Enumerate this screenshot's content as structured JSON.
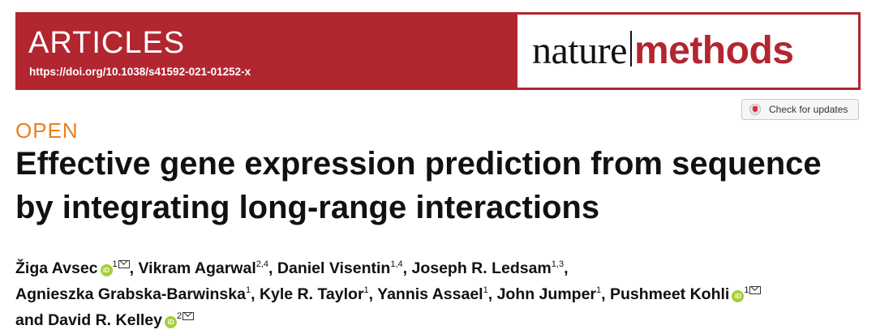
{
  "banner": {
    "section": "ARTICLES",
    "doi": "https://doi.org/10.1038/s41592-021-01252-x",
    "journal_part1": "nature",
    "journal_part2": "methods",
    "color": "#b22630"
  },
  "check_updates": {
    "label": "Check for updates",
    "icon": "crossmark-icon"
  },
  "access": "OPEN",
  "title": "Effective gene expression prediction from sequence by integrating long-range interactions",
  "authors": [
    {
      "name": "Žiga Avsec",
      "orcid": true,
      "aff": "1",
      "email": true,
      "sep": ", "
    },
    {
      "name": "Vikram Agarwal",
      "orcid": false,
      "aff": "2,4",
      "email": false,
      "sep": ", "
    },
    {
      "name": "Daniel Visentin",
      "orcid": false,
      "aff": "1,4",
      "email": false,
      "sep": ", "
    },
    {
      "name": "Joseph R. Ledsam",
      "orcid": false,
      "aff": "1,3",
      "email": false,
      "sep": ","
    },
    {
      "name": "Agnieszka Grabska-Barwinska",
      "orcid": false,
      "aff": "1",
      "email": false,
      "sep": ", "
    },
    {
      "name": "Kyle R. Taylor",
      "orcid": false,
      "aff": "1",
      "email": false,
      "sep": ", "
    },
    {
      "name": "Yannis Assael",
      "orcid": false,
      "aff": "1",
      "email": false,
      "sep": ", "
    },
    {
      "name": "John Jumper",
      "orcid": false,
      "aff": "1",
      "email": false,
      "sep": ", "
    },
    {
      "name": "Pushmeet Kohli",
      "orcid": true,
      "aff": "1",
      "email": true,
      "sep": ""
    },
    {
      "name": "and David R. Kelley",
      "orcid": true,
      "aff": "2",
      "email": true,
      "sep": ""
    }
  ],
  "orcid_glyph": "iD"
}
